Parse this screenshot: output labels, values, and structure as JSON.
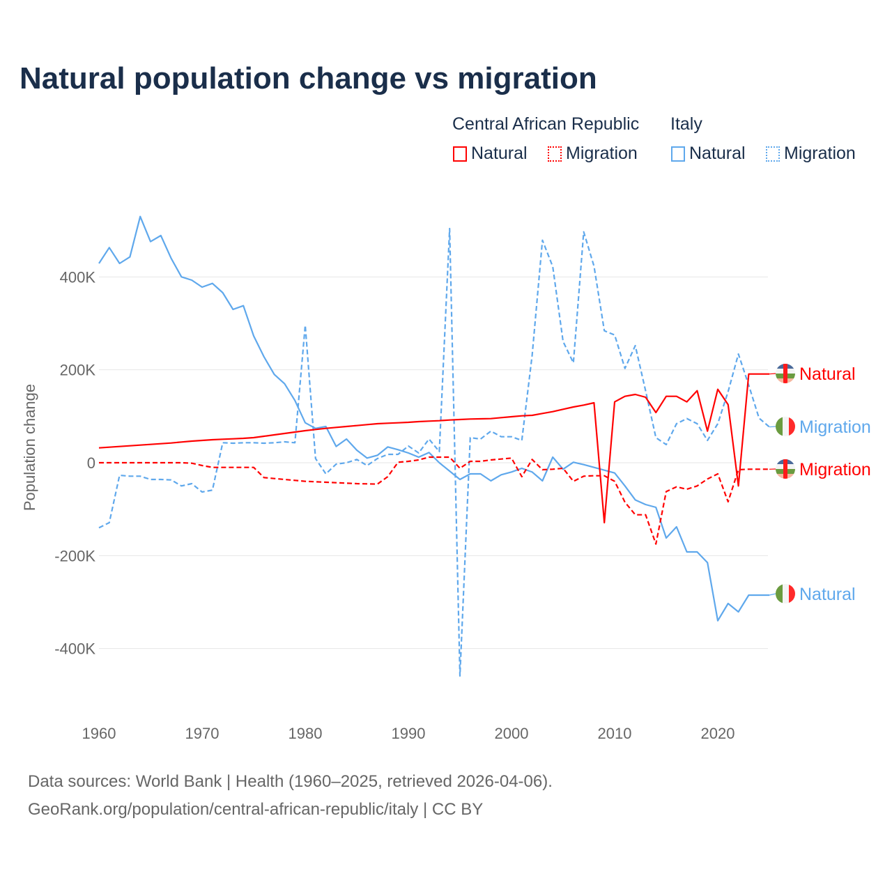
{
  "title": "Natural population change vs migration",
  "legend": {
    "groups": [
      {
        "country": "Central African Republic",
        "color": "#ff0000",
        "items": [
          "Natural",
          "Migration"
        ]
      },
      {
        "country": "Italy",
        "color": "#5fa8ec",
        "items": [
          "Natural",
          "Migration"
        ]
      }
    ]
  },
  "source_lines": [
    "Data sources: World Bank | Health (1960–2025, retrieved 2026-04-06).",
    "GeoRank.org/population/central-african-republic/italy | CC BY"
  ],
  "chart_data": {
    "type": "line",
    "title": "Natural population change vs migration",
    "xlabel": "",
    "ylabel": "Population change",
    "xlim": [
      1960,
      2025
    ],
    "ylim": [
      -460000,
      530000
    ],
    "x_ticks": [
      1960,
      1970,
      1980,
      1990,
      2000,
      2010,
      2020
    ],
    "x_tick_labels": [
      "1960",
      "1970",
      "1980",
      "1990",
      "2000",
      "2010",
      "2020"
    ],
    "y_ticks": [
      400000,
      200000,
      0,
      -200000,
      -400000
    ],
    "y_tick_labels": [
      "400K",
      "200K",
      "0",
      "-200K",
      "-400K"
    ],
    "grid": true,
    "x": [
      1960,
      1961,
      1962,
      1963,
      1964,
      1965,
      1966,
      1967,
      1968,
      1969,
      1970,
      1971,
      1972,
      1973,
      1974,
      1975,
      1976,
      1977,
      1978,
      1979,
      1980,
      1981,
      1982,
      1983,
      1984,
      1985,
      1986,
      1987,
      1988,
      1989,
      1990,
      1991,
      1992,
      1993,
      1994,
      1995,
      1996,
      1997,
      1998,
      1999,
      2000,
      2001,
      2002,
      2003,
      2004,
      2005,
      2006,
      2007,
      2008,
      2009,
      2010,
      2011,
      2012,
      2013,
      2014,
      2015,
      2016,
      2017,
      2018,
      2019,
      2020,
      2021,
      2022,
      2023,
      2024,
      2025
    ],
    "series": [
      {
        "name": "Central African Republic Natural",
        "end_label": "Natural",
        "color": "#ff0000",
        "dash": false,
        "flag": "central-african-republic",
        "values": [
          32000,
          33500,
          35000,
          36500,
          38000,
          39500,
          41000,
          42500,
          44500,
          46500,
          48000,
          49500,
          50500,
          51500,
          52500,
          54000,
          57000,
          60000,
          63000,
          66000,
          69000,
          71500,
          74000,
          76000,
          78000,
          80000,
          82000,
          84000,
          85000,
          86000,
          87000,
          88500,
          89500,
          90500,
          92000,
          93000,
          94000,
          94500,
          95000,
          97000,
          99000,
          101000,
          102000,
          106000,
          110000,
          115000,
          120000,
          124000,
          129000,
          -129000,
          131000,
          143000,
          147000,
          141000,
          108000,
          143000,
          143000,
          131000,
          155000,
          68000,
          158000,
          125000,
          -50000,
          191000,
          191000,
          191000
        ]
      },
      {
        "name": "Central African Republic Migration",
        "end_label": "Migration",
        "color": "#ff0000",
        "dash": true,
        "flag": "central-african-republic",
        "values": [
          0,
          0,
          0,
          0,
          0,
          0,
          0,
          0,
          0,
          -1000,
          -6000,
          -10000,
          -10000,
          -10000,
          -10000,
          -10000,
          -32000,
          -34000,
          -36000,
          -38000,
          -40000,
          -41000,
          -42000,
          -43000,
          -44000,
          -45000,
          -45500,
          -46000,
          -30000,
          1000,
          3000,
          6000,
          12000,
          12000,
          12000,
          -12000,
          3000,
          3000,
          6000,
          8000,
          10000,
          -30000,
          7000,
          -15000,
          -14000,
          -12000,
          -40000,
          -29000,
          -28000,
          -28000,
          -40000,
          -85000,
          -112000,
          -112000,
          -175000,
          -62000,
          -52000,
          -57000,
          -50000,
          -35000,
          -24000,
          -84000,
          -15000,
          -14000,
          -14000,
          -14000
        ]
      },
      {
        "name": "Italy Natural",
        "end_label": "Natural",
        "color": "#5fa8ec",
        "dash": false,
        "flag": "italy",
        "values": [
          429000,
          463000,
          429000,
          443000,
          530000,
          476000,
          489000,
          440000,
          400000,
          393000,
          378000,
          386000,
          366000,
          330000,
          338000,
          273000,
          228000,
          190000,
          170000,
          134000,
          86000,
          74000,
          78000,
          35000,
          51000,
          27000,
          10000,
          16000,
          34000,
          28000,
          21000,
          12000,
          22000,
          0,
          -18000,
          -36000,
          -24000,
          -24000,
          -39000,
          -26000,
          -20000,
          -12000,
          -20000,
          -39000,
          12000,
          -14000,
          1000,
          -4000,
          -10000,
          -16000,
          -22000,
          -50000,
          -80000,
          -90000,
          -96000,
          -162000,
          -138000,
          -192000,
          -192000,
          -215000,
          -340000,
          -303000,
          -321000,
          -285000,
          -285000,
          -285000
        ]
      },
      {
        "name": "Italy Migration",
        "end_label": "Migration",
        "color": "#5fa8ec",
        "dash": true,
        "flag": "italy",
        "values": [
          -140000,
          -129000,
          -27000,
          -29000,
          -29000,
          -36000,
          -36000,
          -37000,
          -50000,
          -45000,
          -63000,
          -59000,
          43000,
          42000,
          43000,
          43000,
          42000,
          43000,
          45000,
          43000,
          296000,
          9000,
          -24000,
          -3000,
          0,
          7000,
          -6000,
          9000,
          18000,
          18000,
          36000,
          21000,
          51000,
          24000,
          504000,
          -459000,
          54000,
          51000,
          68000,
          56000,
          56000,
          48000,
          231000,
          479000,
          422000,
          261000,
          215000,
          497000,
          423000,
          284000,
          275000,
          203000,
          252000,
          155000,
          54000,
          39000,
          84000,
          95000,
          84000,
          48000,
          84000,
          153000,
          234000,
          167000,
          96000,
          77000
        ]
      }
    ]
  }
}
